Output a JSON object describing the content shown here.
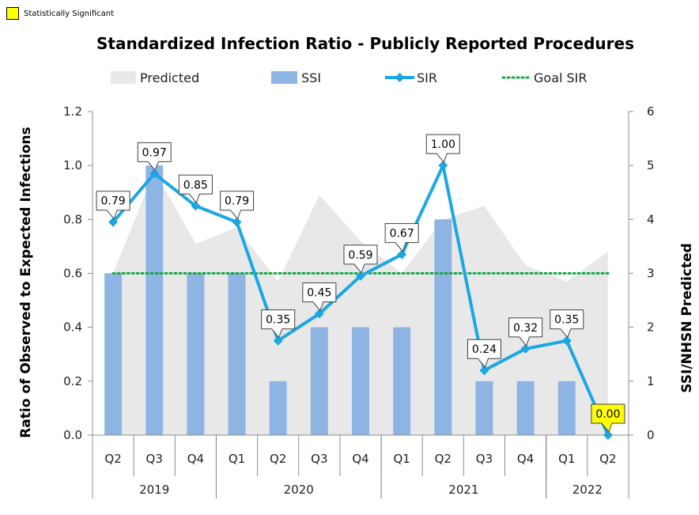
{
  "significance_key": {
    "label": "Statistically Significant",
    "color": "#ffff00"
  },
  "chart_data": {
    "type": "bar",
    "title": "Standardized Infection Ratio - Publicly Reported Procedures",
    "quarters": [
      "Q2",
      "Q3",
      "Q4",
      "Q1",
      "Q2",
      "Q3",
      "Q4",
      "Q1",
      "Q2",
      "Q3",
      "Q4",
      "Q1",
      "Q2"
    ],
    "years": [
      {
        "label": "2019",
        "span": 3
      },
      {
        "label": "2020",
        "span": 4
      },
      {
        "label": "2021",
        "span": 4
      },
      {
        "label": "2022",
        "span": 2
      }
    ],
    "ylabel_left": "Ratio of Observed to Expected Infections",
    "ylabel_right": "SSI/NHSN Predicted",
    "ylim_left": [
      0,
      1.2
    ],
    "yticks_left": [
      "0.0",
      "0.2",
      "0.4",
      "0.6",
      "0.8",
      "1.0",
      "1.2"
    ],
    "ylim_right": [
      0,
      6
    ],
    "yticks_right": [
      "0",
      "1",
      "2",
      "3",
      "4",
      "5",
      "6"
    ],
    "legend": [
      "Predicted",
      "SSI",
      "SIR",
      "Goal SIR"
    ],
    "colors": {
      "predicted": "#e8e8e8",
      "ssi": "#8eb4e3",
      "sir": "#1aa7e3",
      "goal": "#1aa84a"
    },
    "series": [
      {
        "name": "Predicted",
        "axis": "right",
        "style": "area",
        "values": [
          3.0,
          4.9,
          3.55,
          3.85,
          2.85,
          4.45,
          3.6,
          3.0,
          4.0,
          4.25,
          3.15,
          2.85,
          3.4
        ]
      },
      {
        "name": "SSI",
        "axis": "right",
        "style": "bar",
        "values": [
          3,
          5,
          3,
          3,
          1,
          2,
          2,
          2,
          4,
          1,
          1,
          1,
          0
        ]
      },
      {
        "name": "SIR",
        "axis": "left",
        "style": "line",
        "values": [
          0.79,
          0.97,
          0.85,
          0.79,
          0.35,
          0.45,
          0.59,
          0.67,
          1.0,
          0.24,
          0.32,
          0.35,
          0.0
        ],
        "labels": [
          "0.79",
          "0.97",
          "0.85",
          "0.79",
          "0.35",
          "0.45",
          "0.59",
          "0.67",
          "1.00",
          "0.24",
          "0.32",
          "0.35",
          "0.00"
        ],
        "significant": [
          false,
          false,
          false,
          false,
          false,
          false,
          false,
          false,
          false,
          false,
          false,
          false,
          true
        ]
      },
      {
        "name": "Goal SIR",
        "axis": "left",
        "style": "dotted",
        "value": 0.6
      }
    ]
  }
}
